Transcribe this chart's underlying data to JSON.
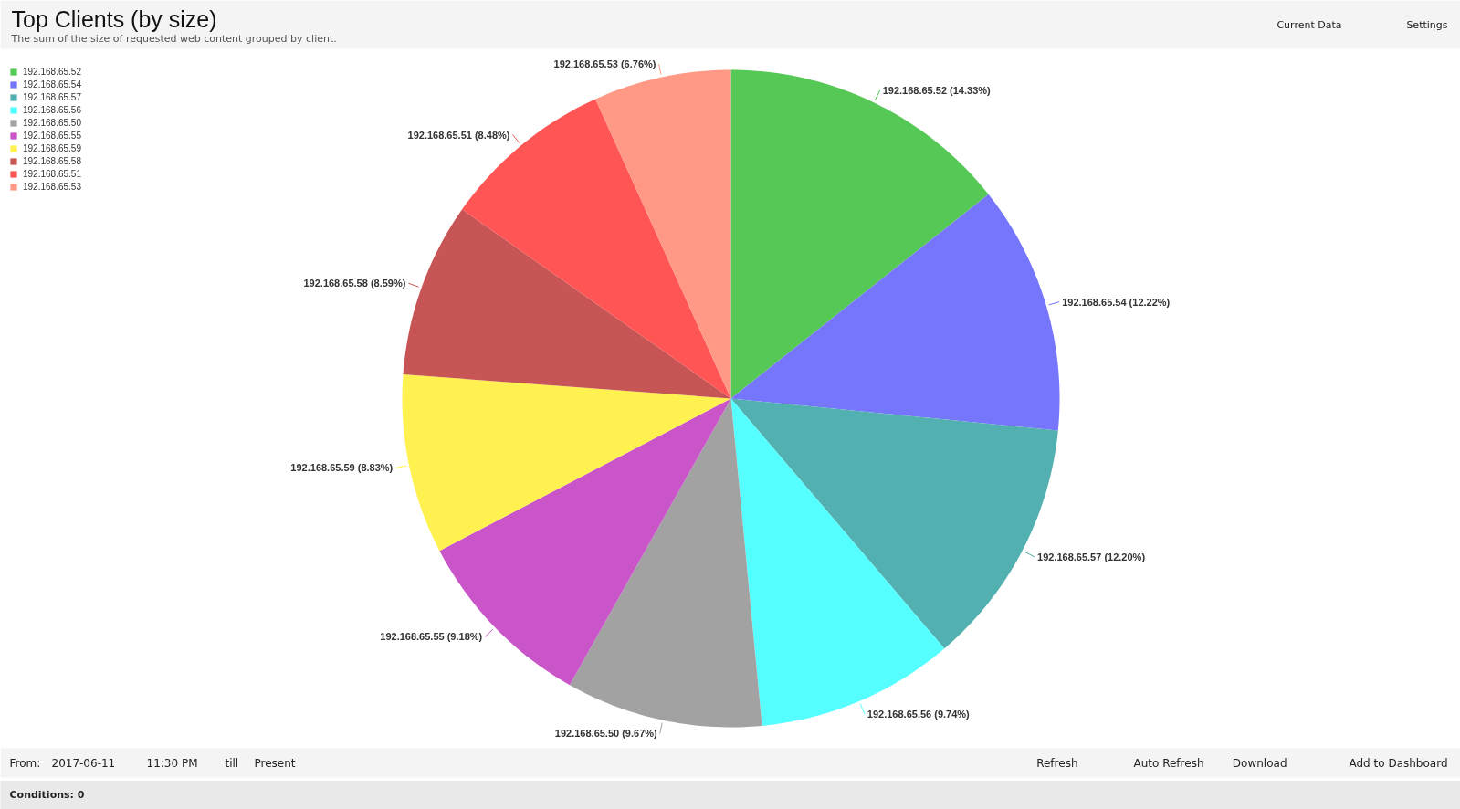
{
  "chart_data": {
    "type": "pie",
    "title": "Top Clients (by size)",
    "subtitle": "The sum of the size of requested web content grouped by client.",
    "categories": [
      "192.168.65.52",
      "192.168.65.54",
      "192.168.65.57",
      "192.168.65.56",
      "192.168.65.50",
      "192.168.65.55",
      "192.168.65.59",
      "192.168.65.58",
      "192.168.65.51",
      "192.168.65.53"
    ],
    "values": [
      14.33,
      12.22,
      12.2,
      9.74,
      9.67,
      9.18,
      8.83,
      8.59,
      8.48,
      6.76
    ],
    "colors": [
      "#55c855",
      "#7676fc",
      "#52b0b0",
      "#55ffff",
      "#a2a2a2",
      "#c955c9",
      "#fff150",
      "#c85555",
      "#ff5555",
      "#ff9985"
    ],
    "value_labels": [
      "192.168.65.52 (14.33%)",
      "192.168.65.54 (12.22%)",
      "192.168.65.57 (12.20%)",
      "192.168.65.56 (9.74%)",
      "192.168.65.50 (9.67%)",
      "192.168.65.55 (9.18%)",
      "192.168.65.59 (8.83%)",
      "192.168.65.58 (8.59%)",
      "192.168.65.51 (8.48%)",
      "192.168.65.53 (6.76%)"
    ],
    "legend": "top left",
    "annotations": [
      "Current Data",
      "Settings",
      "From:",
      "2017-06-11",
      "11:30 PM",
      "till",
      "Present",
      "Refresh",
      "Auto Refresh",
      "Download",
      "Add to Dashboard",
      "Conditions: 0"
    ]
  }
}
